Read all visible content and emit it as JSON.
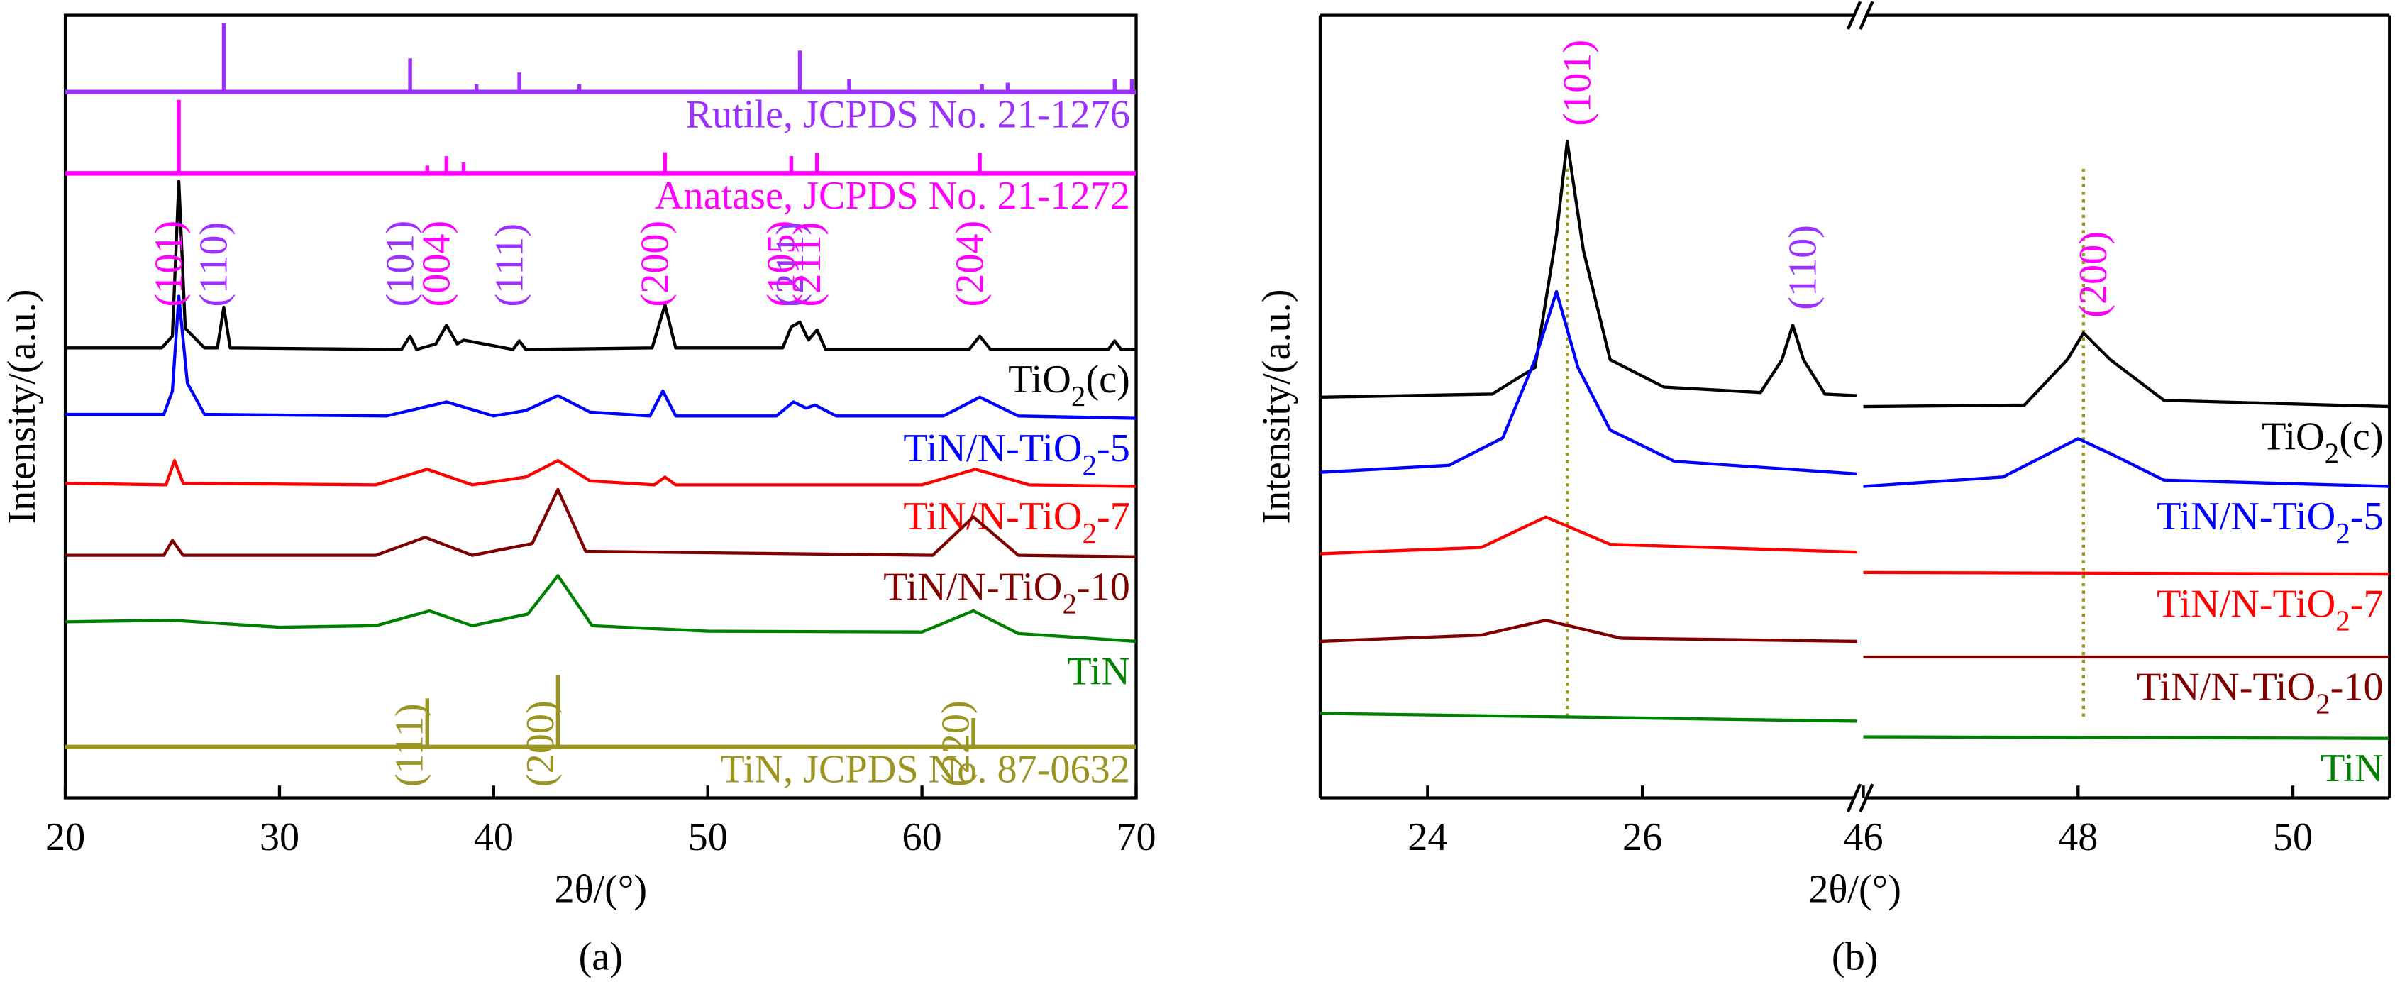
{
  "chart_data": [
    {
      "type": "line",
      "caption": "(a)",
      "xlabel": "2θ/(°)",
      "ylabel": "Intensity/(a.u.)",
      "xlim": [
        20,
        70
      ],
      "ylim": [
        0,
        100
      ],
      "xticks": [
        20,
        30,
        40,
        50,
        60,
        70
      ],
      "series": [
        {
          "name": "TiO2(c)",
          "color": "#000000",
          "x": [
            20,
            24.5,
            25.0,
            25.3,
            25.6,
            26.5,
            27.1,
            27.4,
            27.7,
            35.7,
            36.1,
            36.4,
            37.3,
            37.8,
            38.3,
            38.6,
            40.9,
            41.2,
            41.5,
            47.4,
            48.0,
            48.5,
            53.5,
            53.9,
            54.3,
            54.7,
            55.1,
            55.5,
            62.2,
            62.7,
            63.2,
            68.7,
            69.0,
            69.3,
            70
          ],
          "values": [
            57.5,
            57.5,
            59,
            78.8,
            60,
            57.5,
            57.5,
            62.7,
            57.5,
            57.3,
            59,
            57.3,
            58,
            60.4,
            58,
            58.5,
            57.3,
            58.4,
            57.3,
            57.5,
            63,
            57.5,
            57.5,
            60.2,
            60.8,
            58.5,
            59.8,
            57.3,
            57.3,
            59,
            57.3,
            57.3,
            58.4,
            57.3,
            57.3
          ]
        },
        {
          "name": "TiN/N-TiO2-5",
          "color": "#0000ff",
          "x": [
            20,
            24.6,
            25.0,
            25.3,
            25.7,
            26.5,
            35,
            37.8,
            40,
            41.5,
            43.0,
            44.5,
            47.3,
            47.9,
            48.5,
            53.2,
            54.0,
            54.6,
            55.0,
            56,
            61,
            62.7,
            64.5,
            70
          ],
          "values": [
            49,
            49,
            52,
            64.1,
            53,
            49,
            48.8,
            50.6,
            48.8,
            49.5,
            51.4,
            49.3,
            48.8,
            52,
            48.8,
            48.8,
            50.6,
            49.8,
            50.2,
            48.8,
            48.8,
            51.2,
            48.8,
            48.5
          ]
        },
        {
          "name": "TiN/N-TiO2-7",
          "color": "#ff0000",
          "x": [
            20,
            24.7,
            25.1,
            25.5,
            34.5,
            36.9,
            39,
            41.5,
            43.0,
            44.5,
            47.5,
            48.0,
            48.5,
            60,
            62.5,
            65,
            70
          ],
          "values": [
            40.2,
            40,
            43.1,
            40.2,
            40,
            42,
            40,
            41,
            43.1,
            40.5,
            40,
            41,
            40,
            40,
            42,
            40,
            39.8
          ]
        },
        {
          "name": "TiN/N-TiO2-10",
          "color": "#800000",
          "x": [
            20,
            24.6,
            25.0,
            25.5,
            34.5,
            36.8,
            39,
            41.8,
            43.0,
            44.3,
            60.5,
            62.4,
            64.5,
            70
          ],
          "values": [
            31,
            31,
            32.9,
            31,
            31,
            33.3,
            31,
            32.5,
            39.4,
            31.5,
            31,
            35.9,
            31,
            30.8
          ]
        },
        {
          "name": "TiN",
          "color": "#008000",
          "x": [
            20,
            25,
            30,
            34.5,
            37.0,
            39,
            41.6,
            43.0,
            44.6,
            50,
            60,
            62.4,
            64.5,
            70
          ],
          "values": [
            22.5,
            22.7,
            21.8,
            22,
            23.9,
            22,
            23.5,
            28.4,
            22,
            21.3,
            21.2,
            23.9,
            21,
            20
          ]
        }
      ],
      "references": [
        {
          "name": "Rutile, JCPDS No. 21-1276",
          "color": "#9b30ff",
          "base": 90.2,
          "x": [
            27.4,
            36.1,
            39.2,
            41.2,
            44.0,
            54.3,
            56.6,
            62.8,
            64.0,
            69.0,
            69.8
          ],
          "values": [
            99,
            94.5,
            91.2,
            92.7,
            91.2,
            95.5,
            91.8,
            91.2,
            91.4,
            91.8,
            91.8
          ]
        },
        {
          "name": "Anatase, JCPDS No. 21-1272",
          "color": "#ff00ff",
          "base": 79.8,
          "x": [
            25.3,
            36.9,
            37.8,
            38.6,
            48.0,
            53.9,
            55.1,
            62.7
          ],
          "values": [
            89.2,
            80.8,
            82,
            81.2,
            82.5,
            82,
            82.4,
            82.4
          ]
        },
        {
          "name": "TiN, JCPDS No. 87-0632",
          "color": "#9a9420",
          "base": 6.5,
          "x": [
            36.9,
            43.0,
            62.4
          ],
          "values": [
            12.7,
            15.7,
            10.2
          ],
          "labels": [
            "(111)",
            "(200)",
            "(220)"
          ]
        }
      ],
      "annotations": [
        {
          "text": "(101)",
          "x": 25.3,
          "color": "#ff00ff"
        },
        {
          "text": "(110)",
          "x": 27.4,
          "color": "#9b30ff"
        },
        {
          "text": "(101)",
          "x": 36.1,
          "color": "#9b30ff"
        },
        {
          "text": "(004)",
          "x": 37.8,
          "color": "#ff00ff"
        },
        {
          "text": "(111)",
          "x": 41.2,
          "color": "#9b30ff"
        },
        {
          "text": "(200)",
          "x": 48.0,
          "color": "#ff00ff"
        },
        {
          "text": "(105)",
          "x": 53.9,
          "color": "#ff00ff"
        },
        {
          "text": "(211)",
          "x": 54.3,
          "color": "#9b30ff"
        },
        {
          "text": "(211)",
          "x": 55.1,
          "color": "#ff00ff"
        },
        {
          "text": "(204)",
          "x": 62.7,
          "color": "#ff00ff"
        }
      ]
    },
    {
      "type": "line",
      "caption": "(b)",
      "xlabel": "2θ/(°)",
      "ylabel": "Intensity/(a.u.)",
      "xlim": [
        23,
        50.9
      ],
      "xbreak": [
        28,
        46
      ],
      "ylim": [
        0,
        100
      ],
      "xticks": [
        24,
        26,
        46,
        48,
        50
      ],
      "series": [
        {
          "name": "TiO2(c)",
          "color": "#000000",
          "x": [
            23,
            24.6,
            25.0,
            25.2,
            25.3,
            25.45,
            25.7,
            26.2,
            27.1,
            27.3,
            27.4,
            27.5,
            27.7,
            28,
            37,
            46,
            47.5,
            47.9,
            48.05,
            48.3,
            48.8,
            50.9
          ],
          "values": [
            51.2,
            51.6,
            55,
            72,
            83.9,
            70,
            56,
            52.5,
            51.8,
            56,
            60.4,
            56,
            51.6,
            51.4,
            null,
            50,
            50.2,
            56,
            59.4,
            56,
            50.8,
            50
          ]
        },
        {
          "name": "TiN/N-TiO2-5",
          "color": "#0000ff",
          "x": [
            23,
            24.2,
            24.7,
            25.0,
            25.2,
            25.4,
            25.7,
            26.3,
            28,
            37,
            46,
            47.3,
            47.8,
            48.0,
            48.3,
            48.8,
            50.9
          ],
          "values": [
            41.6,
            42.5,
            46,
            56,
            64.7,
            55,
            47,
            43,
            41.4,
            null,
            39.8,
            41,
            44.5,
            45.9,
            44,
            40.6,
            39.8
          ]
        },
        {
          "name": "TiN/N-TiO2-7",
          "color": "#ff0000",
          "x": [
            23,
            24.5,
            25.1,
            25.7,
            28,
            37,
            46,
            50.9
          ],
          "values": [
            31.2,
            32,
            35.9,
            32.4,
            31.4,
            null,
            28.8,
            28.6
          ]
        },
        {
          "name": "TiN/N-TiO2-10",
          "color": "#800000",
          "x": [
            23,
            24.5,
            25.1,
            25.8,
            28,
            37,
            46,
            50.9
          ],
          "values": [
            20,
            20.8,
            22.7,
            20.4,
            20,
            null,
            18,
            18
          ]
        },
        {
          "name": "TiN",
          "color": "#008000",
          "x": [
            23,
            28,
            37,
            46,
            50.9
          ],
          "values": [
            10.8,
            9.8,
            null,
            7.8,
            7.6
          ]
        }
      ],
      "annotations": [
        {
          "text": "(101)",
          "x": 25.3,
          "color": "#ff00ff"
        },
        {
          "text": "(110)",
          "x": 27.4,
          "color": "#9b30ff"
        },
        {
          "text": "(200)",
          "x": 48.05,
          "color": "#ff00ff"
        }
      ],
      "reference_lines": [
        25.3,
        48.05
      ]
    }
  ]
}
